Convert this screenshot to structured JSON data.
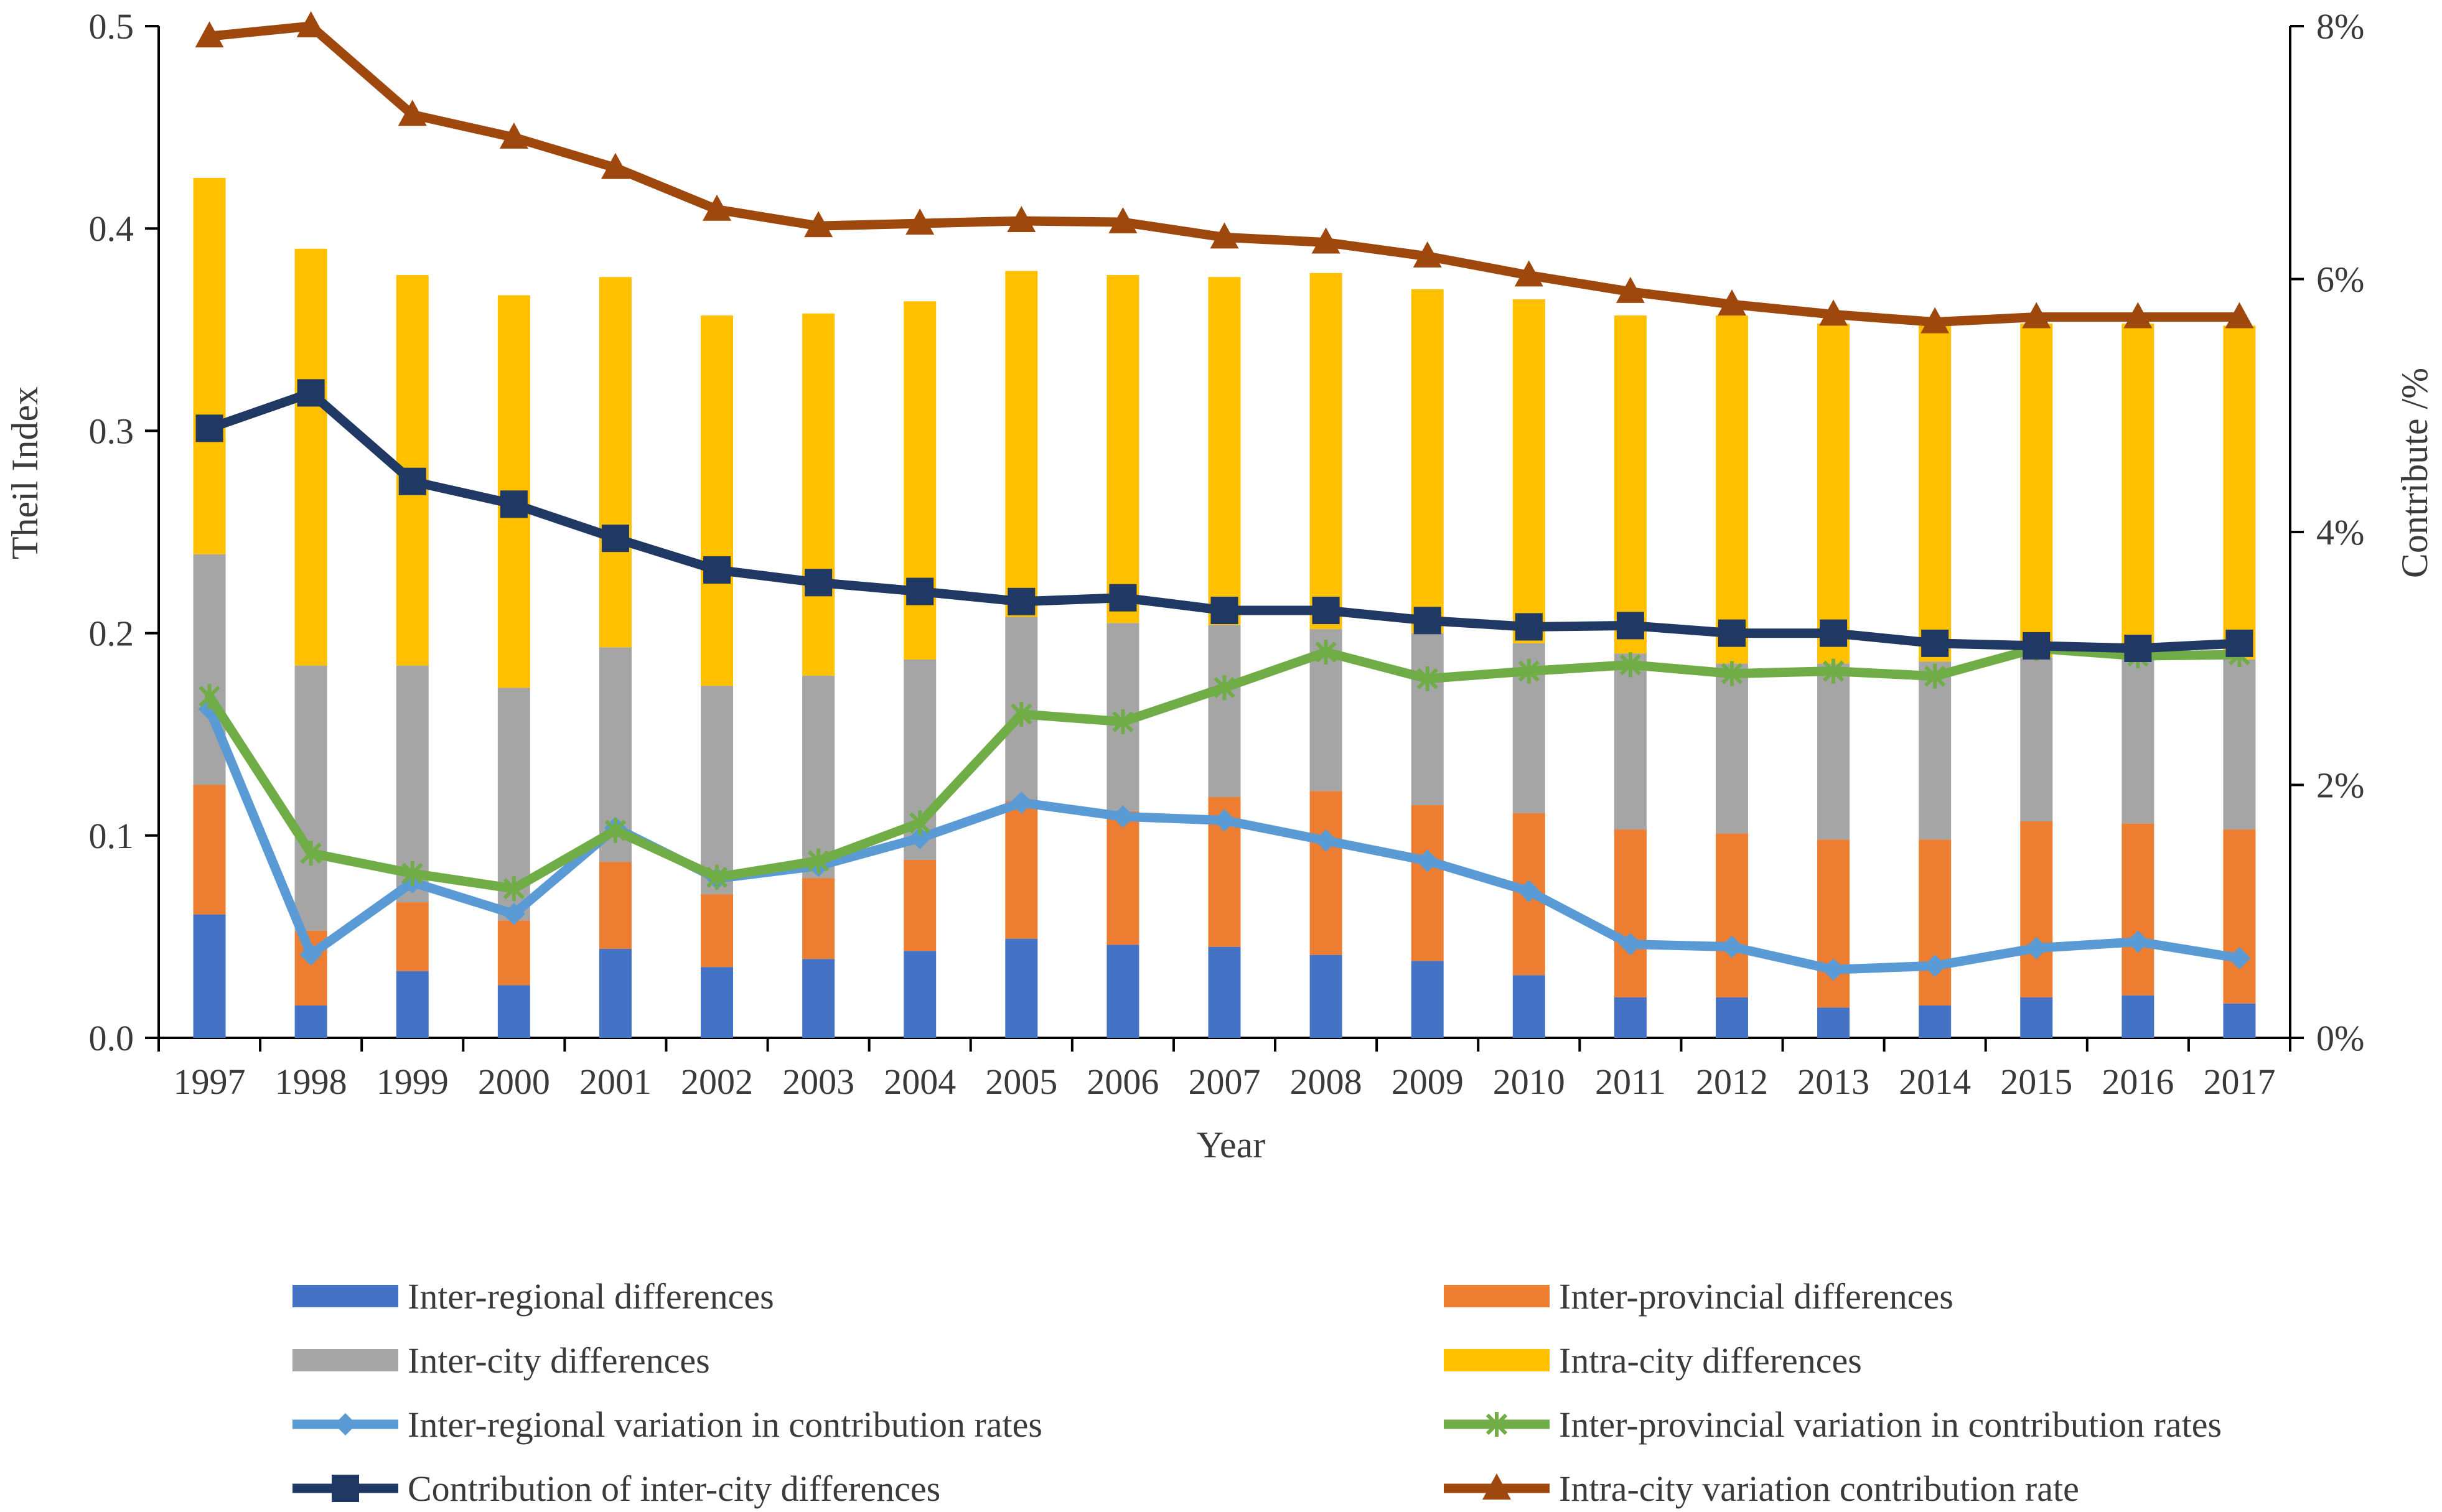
{
  "chart_data": {
    "type": "bar+line",
    "title": "",
    "xlabel": "Year",
    "ylabel": "Theil Index",
    "y2label": "Contribute /%",
    "ylim": [
      0,
      0.5
    ],
    "y2lim": [
      0,
      8
    ],
    "yticks": [
      "0.0",
      "0.1",
      "0.2",
      "0.3",
      "0.4",
      "0.5"
    ],
    "y2ticks": [
      "0%",
      "2%",
      "4%",
      "6%",
      "8%"
    ],
    "categories": [
      "1997",
      "1998",
      "1999",
      "2000",
      "2001",
      "2002",
      "2003",
      "2004",
      "2005",
      "2006",
      "2007",
      "2008",
      "2009",
      "2010",
      "2011",
      "2012",
      "2013",
      "2014",
      "2015",
      "2016",
      "2017"
    ],
    "bar_series": [
      {
        "name": "Inter-regional differences",
        "color": "#4472C4",
        "values": [
          0.061,
          0.016,
          0.033,
          0.026,
          0.044,
          0.035,
          0.039,
          0.043,
          0.049,
          0.046,
          0.045,
          0.041,
          0.038,
          0.031,
          0.02,
          0.02,
          0.015,
          0.016,
          0.02,
          0.021,
          0.017
        ]
      },
      {
        "name": "Inter-provincial differences",
        "color": "#ED7D31",
        "values": [
          0.064,
          0.037,
          0.034,
          0.032,
          0.043,
          0.036,
          0.04,
          0.045,
          0.068,
          0.066,
          0.074,
          0.081,
          0.077,
          0.08,
          0.083,
          0.081,
          0.083,
          0.082,
          0.087,
          0.085,
          0.086
        ]
      },
      {
        "name": "Inter-city differences",
        "color": "#A5A5A5",
        "values": [
          0.114,
          0.131,
          0.117,
          0.115,
          0.106,
          0.103,
          0.1,
          0.099,
          0.091,
          0.093,
          0.085,
          0.08,
          0.085,
          0.084,
          0.087,
          0.084,
          0.087,
          0.088,
          0.081,
          0.081,
          0.084
        ]
      },
      {
        "name": "Intra-city differences",
        "color": "#FFC000",
        "values": [
          0.186,
          0.206,
          0.193,
          0.194,
          0.183,
          0.183,
          0.179,
          0.177,
          0.171,
          0.172,
          0.172,
          0.176,
          0.17,
          0.17,
          0.167,
          0.172,
          0.168,
          0.166,
          0.165,
          0.166,
          0.165
        ]
      }
    ],
    "line_series": [
      {
        "name": "Inter-regional variation in contribution rates",
        "color": "#5B9BD5",
        "marker": "diamond",
        "axis": "right",
        "values": [
          2.6,
          0.66,
          1.23,
          0.98,
          1.66,
          1.26,
          1.36,
          1.58,
          1.86,
          1.75,
          1.72,
          1.56,
          1.4,
          1.16,
          0.74,
          0.72,
          0.54,
          0.57,
          0.71,
          0.76,
          0.63
        ]
      },
      {
        "name": "Inter-provincial variation in contribution rates",
        "color": "#70AD47",
        "marker": "x",
        "axis": "right",
        "values": [
          2.7,
          1.46,
          1.3,
          1.18,
          1.64,
          1.27,
          1.4,
          1.7,
          2.56,
          2.5,
          2.77,
          3.05,
          2.84,
          2.9,
          2.95,
          2.88,
          2.9,
          2.86,
          3.08,
          3.02,
          3.03
        ]
      },
      {
        "name": "Contribution of inter-city differences",
        "color": "#203864",
        "marker": "square",
        "axis": "right",
        "values": [
          4.82,
          5.1,
          4.4,
          4.22,
          3.95,
          3.7,
          3.6,
          3.53,
          3.45,
          3.48,
          3.38,
          3.38,
          3.3,
          3.25,
          3.26,
          3.2,
          3.2,
          3.12,
          3.1,
          3.08,
          3.12
        ]
      },
      {
        "name": "Intra-city variation contribution rate",
        "color": "#9E480E",
        "marker": "triangle",
        "axis": "right",
        "values": [
          7.92,
          8.0,
          7.3,
          7.12,
          6.88,
          6.55,
          6.42,
          6.44,
          6.46,
          6.45,
          6.33,
          6.29,
          6.18,
          6.03,
          5.9,
          5.8,
          5.72,
          5.66,
          5.7,
          5.7,
          5.7
        ]
      }
    ],
    "legend_position": "bottom"
  }
}
